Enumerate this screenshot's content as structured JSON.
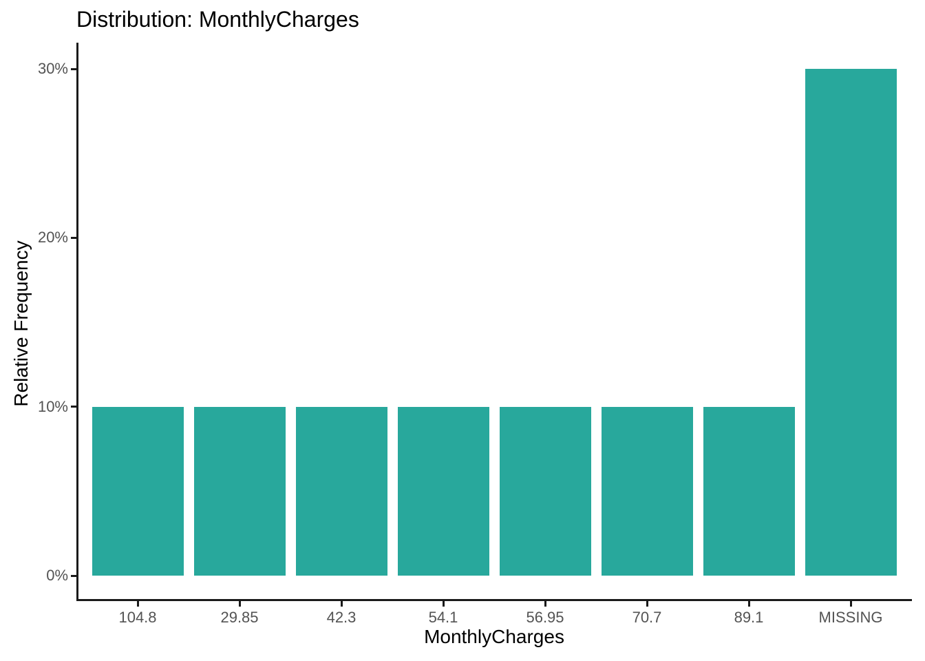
{
  "figure": {
    "background": "#FFFFFF"
  },
  "colors": {
    "bar_fill": "#28A89C",
    "axis_line": "#1A1A1A",
    "tick_label": "#535353",
    "title_text": "#000000"
  },
  "chart_data": {
    "type": "bar",
    "title": "Distribution: MonthlyCharges",
    "xlabel": "MonthlyCharges",
    "ylabel": "Relative Frequency",
    "categories": [
      "104.8",
      "29.85",
      "42.3",
      "54.1",
      "56.95",
      "70.7",
      "89.1",
      "MISSING"
    ],
    "values": [
      10,
      10,
      10,
      10,
      10,
      10,
      10,
      30
    ],
    "value_unit": "%",
    "y_ticks": {
      "labels": [
        "0%",
        "10%",
        "20%",
        "30%"
      ],
      "values": [
        0,
        10,
        20,
        30
      ]
    },
    "ylim": [
      0,
      31.5
    ],
    "grid": false,
    "legend": false,
    "orientation": "vertical",
    "bar_color": "#28A89C"
  }
}
